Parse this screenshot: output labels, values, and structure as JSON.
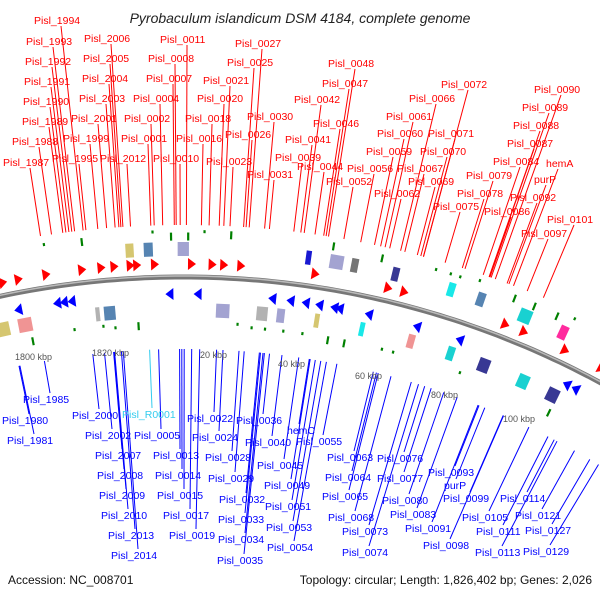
{
  "title": "Pyrobaculum islandicum DSM 4184, complete genome",
  "colors": {
    "forward": "#ff0000",
    "reverse": "#0000ff",
    "rna": "#33ccee",
    "backbone": "#888888",
    "ticks": "#008000"
  },
  "top_labels": [
    "Pisl_1994",
    "Pisl_1993",
    "Pisl_1992",
    "Pisl_1991",
    "Pisl_1990",
    "Pisl_1989",
    "Pisl_1988",
    "Pisl_1987",
    "Pisl_1995",
    "Pisl_1999",
    "Pisl_2001",
    "Pisl_2003",
    "Pisl_2004",
    "Pisl_2005",
    "Pisl_2006",
    "Pisl_2012",
    "Pisl_0001",
    "Pisl_0002",
    "Pisl_0004",
    "Pisl_0007",
    "Pisl_0008",
    "Pisl_0011",
    "Pisl_0010",
    "Pisl_0016",
    "Pisl_0018",
    "Pisl_0020",
    "Pisl_0021",
    "Pisl_0025",
    "Pisl_0027",
    "Pisl_0023",
    "Pisl_0026",
    "Pisl_0030",
    "Pisl_0031",
    "Pisl_0048",
    "Pisl_0047",
    "Pisl_0042",
    "Pisl_0046",
    "Pisl_0041",
    "Pisl_0039",
    "Pisl_0044",
    "Pisl_0052",
    "Pisl_0056",
    "Pisl_0059",
    "Pisl_0060",
    "Pisl_0061",
    "Pisl_0066",
    "Pisl_0072",
    "Pisl_0071",
    "Pisl_0070",
    "Pisl_0067",
    "Pisl_0069",
    "Pisl_0062",
    "Pisl_0075",
    "Pisl_0079",
    "Pisl_0078",
    "Pisl_0086",
    "Pisl_0084",
    "Pisl_0087",
    "Pisl_0088",
    "Pisl_0089",
    "Pisl_0090",
    "hemA",
    "purP",
    "Pisl_0092",
    "Pisl_0101",
    "Pisl_0097"
  ],
  "bottom_labels": [
    "Pisl_1985",
    "Pisl_1980",
    "Pisl_1981",
    "Pisl_2000",
    "Pisl_R0001",
    "Pisl_2002",
    "Pisl_0005",
    "Pisl_2007",
    "Pisl_0013",
    "Pisl_2008",
    "Pisl_0014",
    "Pisl_2009",
    "Pisl_0015",
    "Pisl_2010",
    "Pisl_0017",
    "Pisl_2013",
    "Pisl_0019",
    "Pisl_2014",
    "Pisl_0022",
    "Pisl_0024",
    "Pisl_0028",
    "Pisl_0029",
    "Pisl_0032",
    "Pisl_0033",
    "Pisl_0034",
    "Pisl_0035",
    "Pisl_0036",
    "Pisl_0040",
    "hemC",
    "Pisl_0055",
    "Pisl_0045",
    "Pisl_0049",
    "Pisl_0051",
    "Pisl_0053",
    "Pisl_0054",
    "Pisl_0063",
    "Pisl_0064",
    "Pisl_0065",
    "Pisl_0068",
    "Pisl_0073",
    "Pisl_0074",
    "Pisl_0076",
    "Pisl_0077",
    "Pisl_0080",
    "Pisl_0083",
    "Pisl_0091",
    "Pisl_0098",
    "Pisl_0093",
    "purP",
    "Pisl_0099",
    "Pisl_0105",
    "Pisl_0111",
    "Pisl_0113",
    "Pisl_0114",
    "Pisl_0121",
    "Pisl_0127",
    "Pisl_0129"
  ],
  "scale_labels": [
    "1800 kbp",
    "1820 kbp",
    "20 kbp",
    "40 kbp",
    "60 kbp",
    "80 kbp",
    "100 kbp"
  ],
  "footer": {
    "accession": "Accession: NC_008701",
    "summary": "Topology: circular; Length: 1,826,402 bp; Genes: 2,026"
  }
}
